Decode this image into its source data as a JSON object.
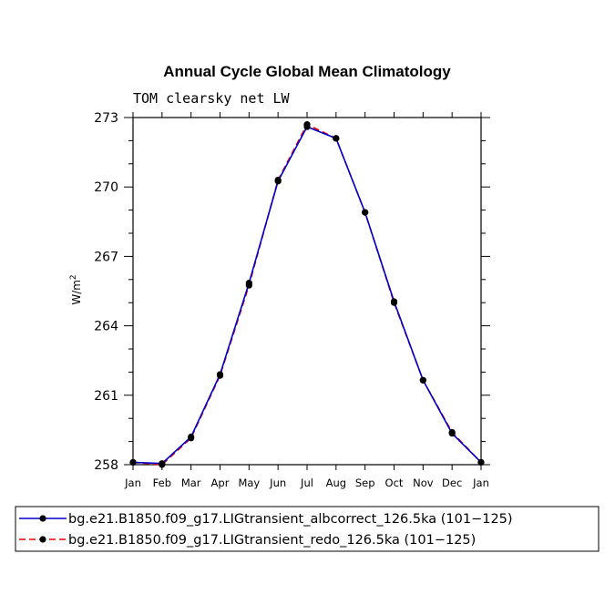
{
  "chart_data": {
    "type": "line",
    "title": "Annual Cycle Global Mean Climatology",
    "subtitle": "TOM clearsky net LW",
    "ylabel": "W/m",
    "ylabel_sup": "2",
    "xlabel": "",
    "ylim": [
      258,
      273
    ],
    "yticks": [
      "258",
      "261",
      "264",
      "267",
      "270",
      "273"
    ],
    "categories": [
      "Jan",
      "Feb",
      "Mar",
      "Apr",
      "May",
      "Jun",
      "Jul",
      "Aug",
      "Sep",
      "Oct",
      "Nov",
      "Dec",
      "Jan"
    ],
    "series": [
      {
        "name": "bg.e21.B1850.f09_g17.LIGtransient_albcorrect_126.5ka (101−125)",
        "color": "#0000cc",
        "dash": "solid",
        "values": [
          258.1,
          258.05,
          259.2,
          261.9,
          265.85,
          270.25,
          272.6,
          272.1,
          268.9,
          265.05,
          261.65,
          259.35,
          258.1
        ]
      },
      {
        "name": "bg.e21.B1850.f09_g17.LIGtransient_redo_126.5ka (101−125)",
        "color": "#ee0000",
        "dash": "dashed",
        "values": [
          258.1,
          258.0,
          259.15,
          261.85,
          265.75,
          270.3,
          272.7,
          272.1,
          268.9,
          265.0,
          261.65,
          259.4,
          258.1
        ]
      }
    ]
  }
}
